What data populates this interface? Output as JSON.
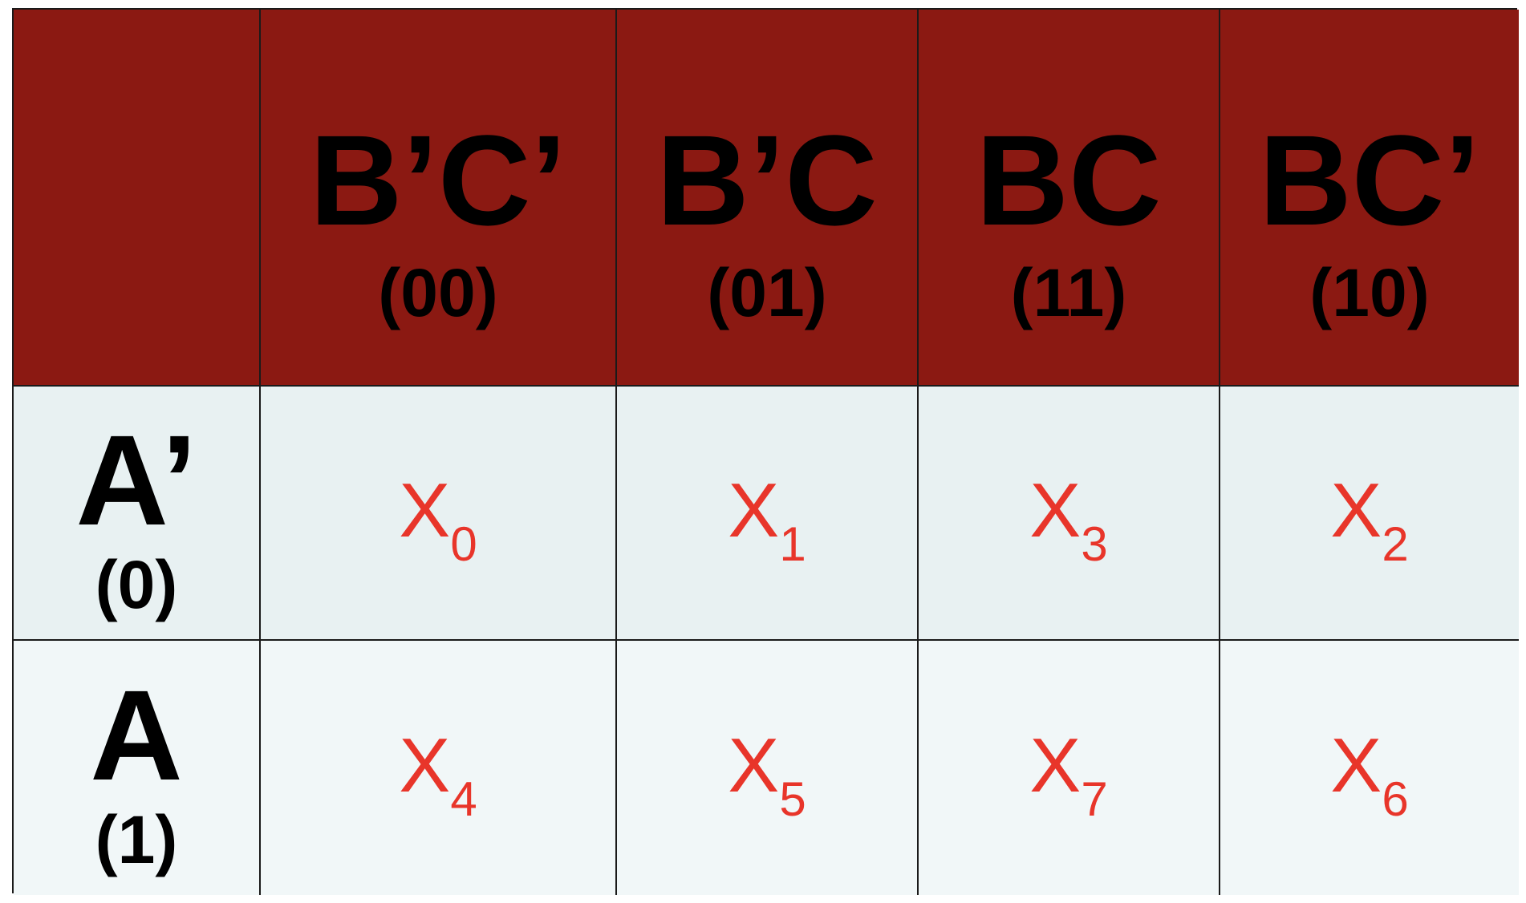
{
  "corner": "",
  "columns": [
    {
      "term": "B’C’",
      "code": "(00)"
    },
    {
      "term": "B’C",
      "code": "(01)"
    },
    {
      "term": "BC",
      "code": "(11)"
    },
    {
      "term": "BC’",
      "code": "(10)"
    }
  ],
  "rows": [
    {
      "term": "A’",
      "code": "(0)",
      "cells": [
        {
          "letter": "X",
          "index": "0"
        },
        {
          "letter": "X",
          "index": "1"
        },
        {
          "letter": "X",
          "index": "3"
        },
        {
          "letter": "X",
          "index": "2"
        }
      ]
    },
    {
      "term": "A",
      "code": "(1)",
      "cells": [
        {
          "letter": "X",
          "index": "4"
        },
        {
          "letter": "X",
          "index": "5"
        },
        {
          "letter": "X",
          "index": "7"
        },
        {
          "letter": "X",
          "index": "6"
        }
      ]
    }
  ],
  "colors": {
    "header_bg": "#8b1912",
    "row0_bg": "#e8f1f2",
    "row1_bg": "#f1f7f8",
    "grid_line": "#1a1a1a",
    "minterm_text": "#e8352a",
    "label_text": "#000000"
  }
}
